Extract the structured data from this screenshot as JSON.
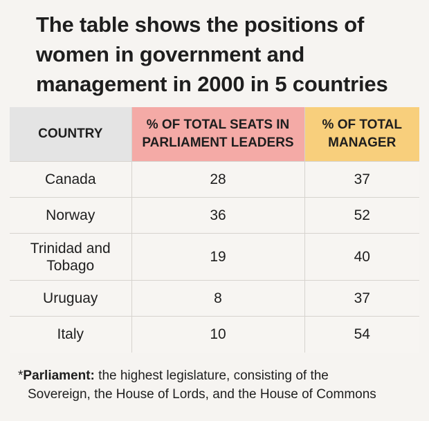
{
  "title": "The table shows the positions of women in government and management in 2000 in 5 countries",
  "chart_data": {
    "type": "table",
    "columns": [
      "COUNTRY",
      "% OF TOTAL SEATS IN PARLIAMENT LEADERS",
      "% OF TOTAL MANAGER"
    ],
    "rows": [
      {
        "country": "Canada",
        "seats": "28",
        "manager": "37"
      },
      {
        "country": "Norway",
        "seats": "36",
        "manager": "52"
      },
      {
        "country": "Trinidad and Tobago",
        "seats": "19",
        "manager": "40"
      },
      {
        "country": "Uruguay",
        "seats": "8",
        "manager": "37"
      },
      {
        "country": "Italy",
        "seats": "10",
        "manager": "54"
      }
    ],
    "header_colors": [
      "#e4e4e4",
      "#f4aaa6",
      "#f8cf7c"
    ]
  },
  "footnote": {
    "asterisk": "*",
    "term": "Parliament:",
    "line1": " the highest legislature, consisting of the",
    "line2": "Sovereign, the House of Lords, and the House of Commons"
  }
}
